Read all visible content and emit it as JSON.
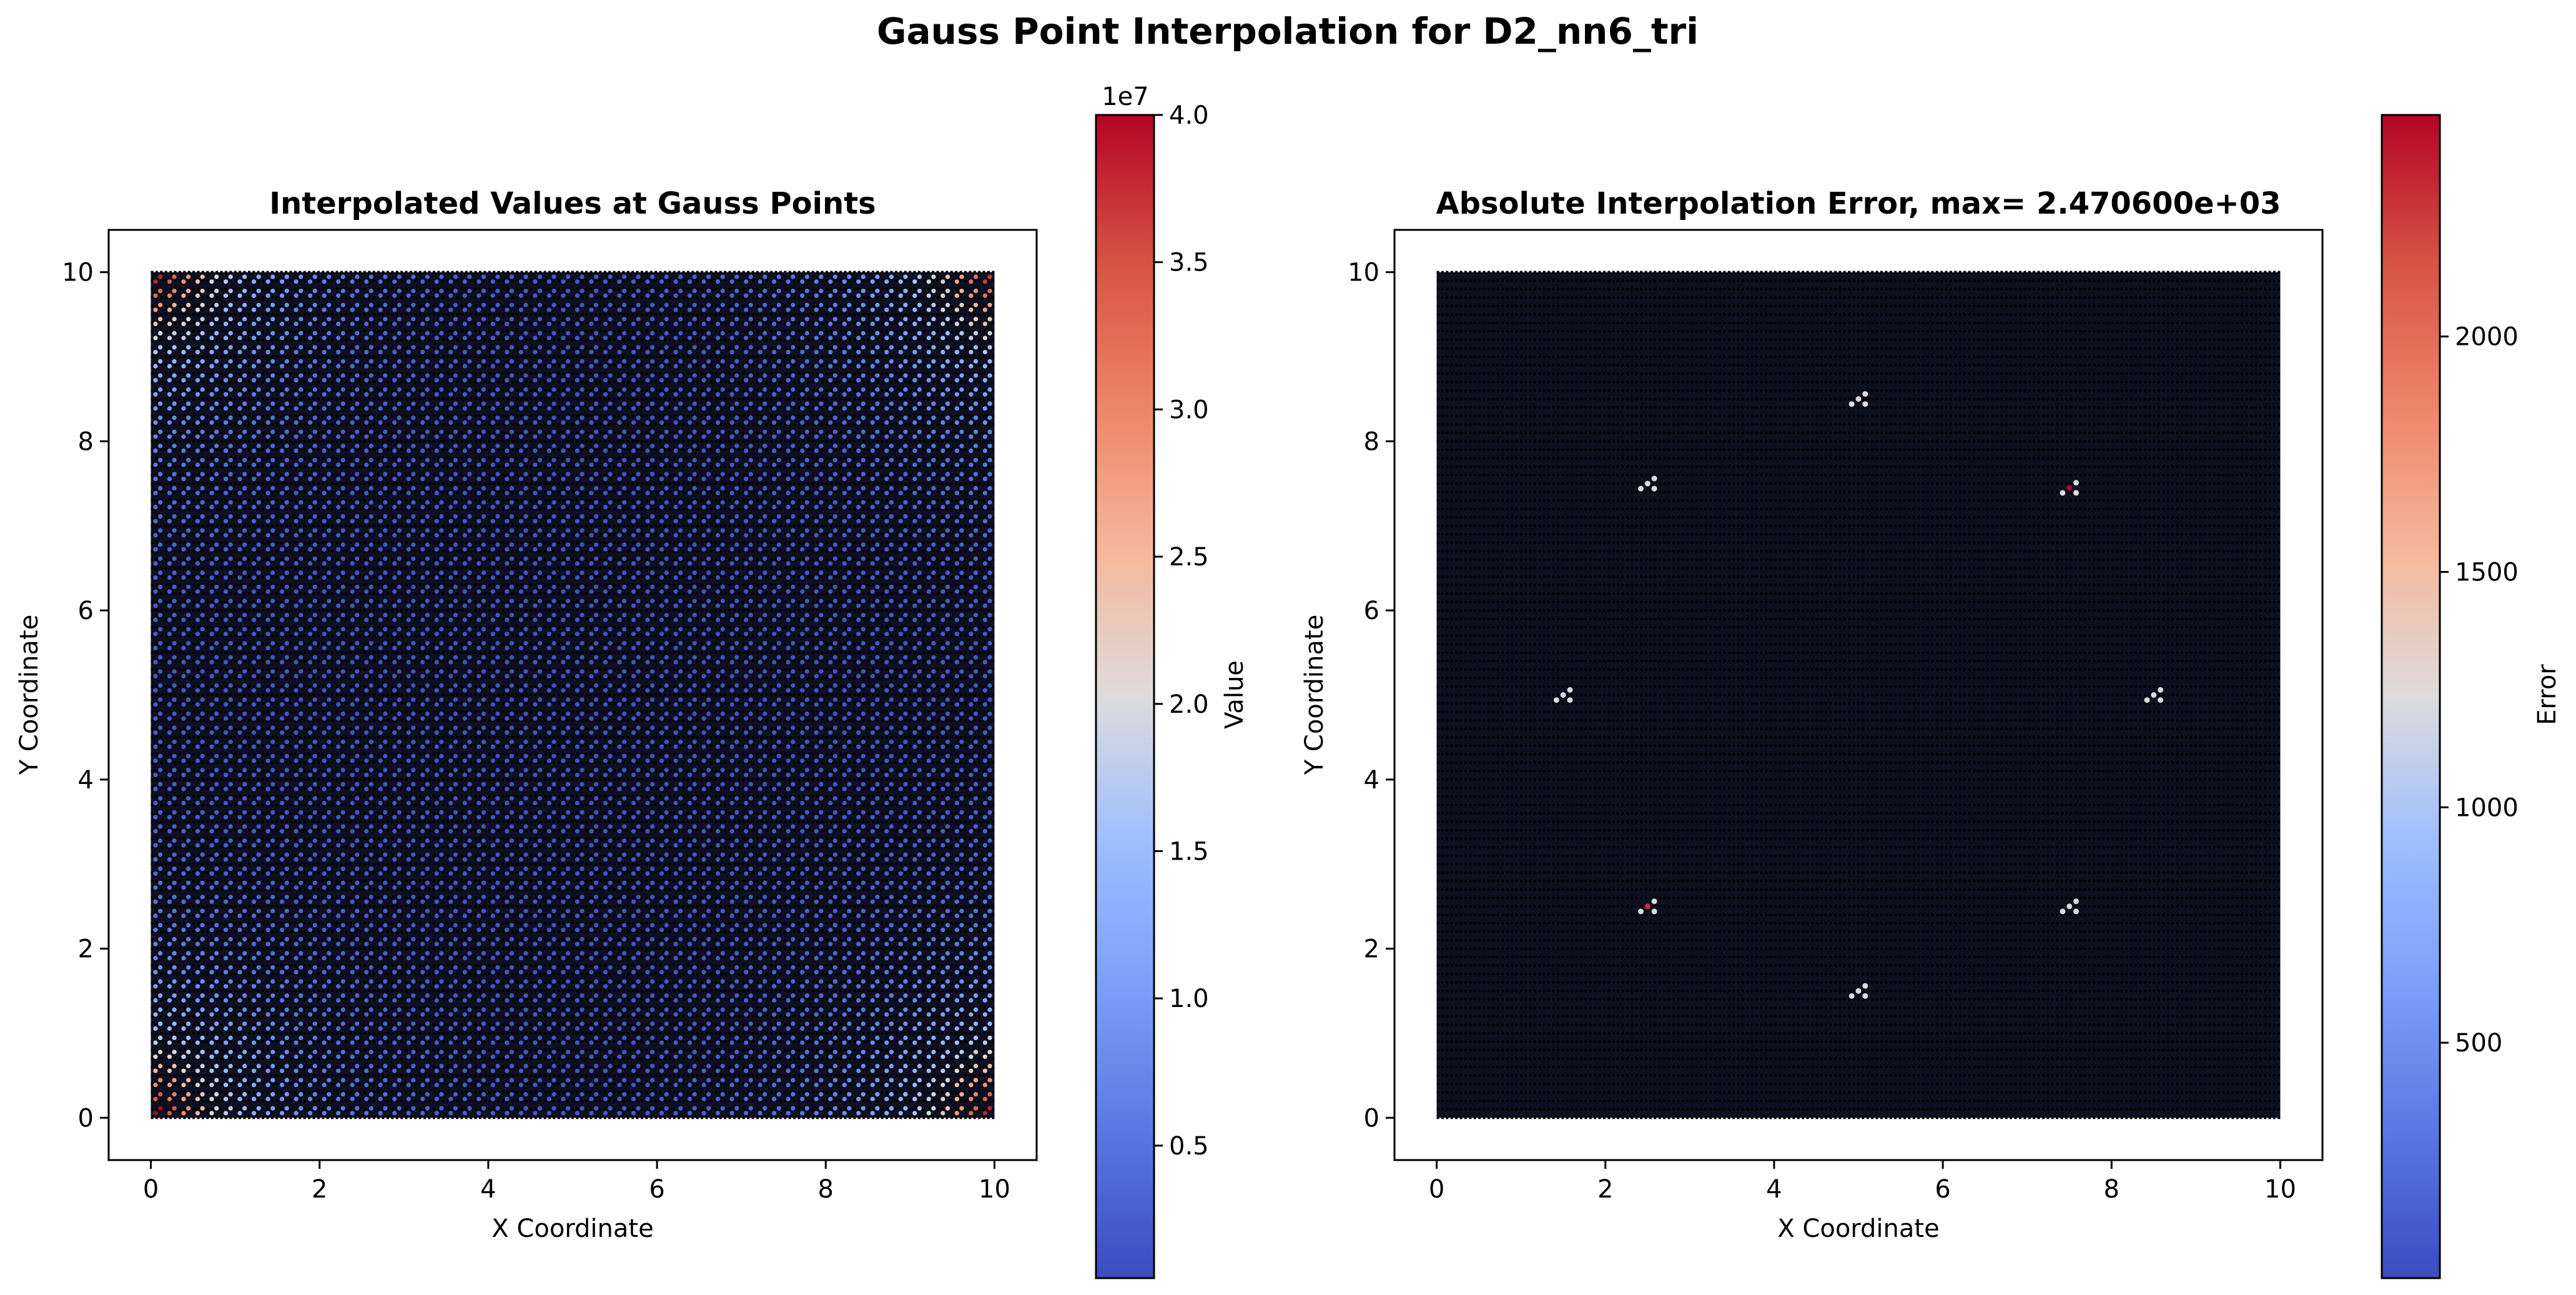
{
  "figure": {
    "suptitle": "Gauss Point Interpolation for D2_nn6_tri"
  },
  "chart_data": [
    {
      "type": "scatter",
      "title": "Interpolated Values at Gauss Points",
      "xlabel": "X Coordinate",
      "ylabel": "Y Coordinate",
      "xlim": [
        -0.5,
        10.5
      ],
      "ylim": [
        -0.5,
        10.5
      ],
      "xticks": [
        "0",
        "2",
        "4",
        "6",
        "8",
        "10"
      ],
      "yticks": [
        "0",
        "2",
        "4",
        "6",
        "8",
        "10"
      ],
      "grid": false,
      "colormap": "coolwarm",
      "colorbar": {
        "label": "Value",
        "offset_text": "1e7",
        "min": 0.05,
        "max": 4.0,
        "ticks": [
          "0.5",
          "1.0",
          "1.5",
          "2.0",
          "2.5",
          "3.0",
          "3.5",
          "4.0"
        ],
        "tick_values": [
          0.5,
          1.0,
          1.5,
          2.0,
          2.5,
          3.0,
          3.5,
          4.0
        ]
      },
      "mesh": {
        "nodes_per_side": 101,
        "node_color": "#000000",
        "gauss_rows": 60,
        "description_field": "corner-peaked values, low interior"
      },
      "field": {
        "pattern": "corner-peaks",
        "base": 0.15,
        "corner_peak": 4.0
      }
    },
    {
      "type": "scatter",
      "title": "Absolute Interpolation Error, max= 2.470600e+03",
      "xlabel": "X Coordinate",
      "ylabel": "Y Coordinate",
      "xlim": [
        -0.5,
        10.5
      ],
      "ylim": [
        -0.5,
        10.5
      ],
      "xticks": [
        "0",
        "2",
        "4",
        "6",
        "8",
        "10"
      ],
      "yticks": [
        "0",
        "2",
        "4",
        "6",
        "8",
        "10"
      ],
      "grid": false,
      "colormap": "coolwarm",
      "colorbar": {
        "label": "Error",
        "offset_text": "",
        "min": 0,
        "max": 2470.6,
        "ticks": [
          "500",
          "1000",
          "1500",
          "2000"
        ],
        "tick_values": [
          500,
          1000,
          1500,
          2000
        ]
      },
      "mesh": {
        "nodes_per_side": 101,
        "node_color": "#000000"
      },
      "hotspots": [
        {
          "x": 5.0,
          "y": 8.5,
          "value": 1300
        },
        {
          "x": 2.5,
          "y": 7.5,
          "value": 1250
        },
        {
          "x": 7.5,
          "y": 7.45,
          "value": 2470.6
        },
        {
          "x": 1.5,
          "y": 5.0,
          "value": 1200
        },
        {
          "x": 8.5,
          "y": 5.0,
          "value": 1250
        },
        {
          "x": 2.5,
          "y": 2.5,
          "value": 2300
        },
        {
          "x": 7.5,
          "y": 2.5,
          "value": 1300
        },
        {
          "x": 5.0,
          "y": 1.5,
          "value": 1250
        }
      ]
    }
  ]
}
